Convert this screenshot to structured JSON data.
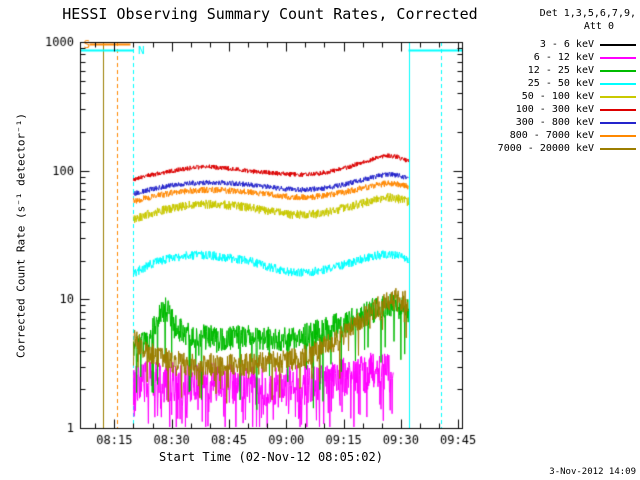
{
  "timestamp": "3-Nov-2012 14:09",
  "chart_data": {
    "type": "line",
    "title": "HESSI Observing Summary Count Rates, Corrected",
    "xlabel": "Start Time (02-Nov-12 08:05:02)",
    "ylabel": "Corrected Count Rate (s⁻¹ detector⁻¹)",
    "grid": false,
    "x_axis": {
      "unit": "minutes after 08:00",
      "min": 6,
      "max": 106,
      "minor_step": 5,
      "major_ticks": [
        {
          "t": 15,
          "label": "08:15"
        },
        {
          "t": 30,
          "label": "08:30"
        },
        {
          "t": 45,
          "label": "08:45"
        },
        {
          "t": 60,
          "label": "09:00"
        },
        {
          "t": 75,
          "label": "09:15"
        },
        {
          "t": 90,
          "label": "09:30"
        },
        {
          "t": 105,
          "label": "09:45"
        }
      ]
    },
    "y_axis": {
      "scale": "log",
      "min": 1,
      "max": 1000,
      "major_ticks": [
        {
          "v": 1,
          "label": "1"
        },
        {
          "v": 10,
          "label": "10"
        },
        {
          "v": 100,
          "label": "100"
        },
        {
          "v": 1000,
          "label": "1000"
        }
      ]
    },
    "legend": {
      "position": "top-right",
      "header_line1": "Det 1,3,5,6,7,9,",
      "header_line2": "Att 0",
      "entries": [
        {
          "label": "3 - 6 keV",
          "color": "#000000"
        },
        {
          "label": "6 - 12 keV",
          "color": "#ff00ff"
        },
        {
          "label": "12 - 25 keV",
          "color": "#00bb00"
        },
        {
          "label": "25 - 50 keV",
          "color": "#00ffff"
        },
        {
          "label": "50 - 100 keV",
          "color": "#c9c900"
        },
        {
          "label": "100 - 300 keV",
          "color": "#dd0000"
        },
        {
          "label": "300 - 800 keV",
          "color": "#2424cc"
        },
        {
          "label": "800 - 7000 keV",
          "color": "#ff8800"
        },
        {
          "label": "7000 - 20000 keV",
          "color": "#9c7e00"
        }
      ]
    },
    "flags": {
      "eclipse": {
        "color": "#9c7e00",
        "line_t": 12.0,
        "style": "solid"
      },
      "saa": {
        "label": "S",
        "color": "#ff8800",
        "bar_value": 960,
        "bar_range": [
          8.5,
          19.2
        ],
        "line_t": 15.8,
        "line_style": "dashed",
        "label_t": 6.9
      },
      "night": {
        "label": "N",
        "color": "#00ffff",
        "bar_value": 860,
        "bar_ranges": [
          [
            6,
            20
          ],
          [
            92,
            106
          ]
        ],
        "lines": [
          {
            "t": 20,
            "style": "dashed"
          },
          {
            "t": 92,
            "style": "solid"
          },
          {
            "t": 100.5,
            "style": "dashed"
          }
        ],
        "label_t": 21.2
      }
    },
    "series": [
      {
        "name": "3 - 6 keV",
        "color": "#000000",
        "noise": 0,
        "points": []
      },
      {
        "name": "6 - 12 keV",
        "color": "#ff00ff",
        "noise": 0.16,
        "spike_prob": 0.18,
        "spike_depth": 0.35,
        "points": [
          [
            20,
            2.3
          ],
          [
            28,
            2.25
          ],
          [
            36,
            2.3
          ],
          [
            44,
            2.2
          ],
          [
            52,
            2.15
          ],
          [
            60,
            2.1
          ],
          [
            68,
            2.25
          ],
          [
            76,
            2.5
          ],
          [
            82,
            2.75
          ],
          [
            86,
            2.8
          ],
          [
            88,
            2.5
          ]
        ]
      },
      {
        "name": "12 - 25 keV",
        "color": "#00bb00",
        "noise": 0.1,
        "spike_prob": 0.06,
        "spike_depth": 0.5,
        "points": [
          [
            20,
            4.2
          ],
          [
            24,
            4.8
          ],
          [
            26.5,
            7.5
          ],
          [
            28.5,
            8.5
          ],
          [
            31,
            6.0
          ],
          [
            35,
            5.2
          ],
          [
            40,
            5.0
          ],
          [
            45,
            5.0
          ],
          [
            50,
            5.0
          ],
          [
            55,
            5.0
          ],
          [
            60,
            5.0
          ],
          [
            65,
            5.2
          ],
          [
            70,
            5.8
          ],
          [
            75,
            6.5
          ],
          [
            80,
            7.5
          ],
          [
            84,
            8.5
          ],
          [
            88,
            9.0
          ],
          [
            91,
            8.5
          ],
          [
            92,
            8.0
          ]
        ]
      },
      {
        "name": "25 - 50 keV",
        "color": "#00ffff",
        "noise": 0.035,
        "points": [
          [
            20,
            16
          ],
          [
            25,
            19
          ],
          [
            30,
            21
          ],
          [
            35,
            22
          ],
          [
            40,
            22
          ],
          [
            45,
            21
          ],
          [
            50,
            20
          ],
          [
            55,
            18
          ],
          [
            60,
            16.5
          ],
          [
            65,
            16
          ],
          [
            70,
            17
          ],
          [
            75,
            18.5
          ],
          [
            80,
            20.5
          ],
          [
            84,
            22
          ],
          [
            87,
            22.5
          ],
          [
            90,
            21.5
          ],
          [
            92,
            20
          ]
        ]
      },
      {
        "name": "50 - 100 keV",
        "color": "#c9c900",
        "noise": 0.035,
        "points": [
          [
            20,
            42
          ],
          [
            25,
            47
          ],
          [
            30,
            51
          ],
          [
            35,
            54
          ],
          [
            40,
            55
          ],
          [
            45,
            54
          ],
          [
            50,
            52
          ],
          [
            55,
            49
          ],
          [
            60,
            46
          ],
          [
            65,
            45
          ],
          [
            70,
            47
          ],
          [
            75,
            51
          ],
          [
            80,
            56
          ],
          [
            84,
            60
          ],
          [
            87,
            62
          ],
          [
            90,
            60
          ],
          [
            92,
            57
          ]
        ]
      },
      {
        "name": "100 - 300 keV",
        "color": "#dd0000",
        "noise": 0.018,
        "points": [
          [
            20,
            85
          ],
          [
            24,
            92
          ],
          [
            28,
            97
          ],
          [
            32,
            102
          ],
          [
            36,
            106
          ],
          [
            40,
            107
          ],
          [
            44,
            105
          ],
          [
            48,
            101
          ],
          [
            52,
            98
          ],
          [
            56,
            96
          ],
          [
            60,
            94
          ],
          [
            64,
            93
          ],
          [
            68,
            95
          ],
          [
            72,
            99
          ],
          [
            76,
            106
          ],
          [
            80,
            116
          ],
          [
            84,
            126
          ],
          [
            87,
            131
          ],
          [
            89,
            128
          ],
          [
            91,
            122
          ],
          [
            92,
            118
          ]
        ]
      },
      {
        "name": "300 - 800 keV",
        "color": "#2424cc",
        "noise": 0.02,
        "points": [
          [
            20,
            66
          ],
          [
            25,
            72
          ],
          [
            30,
            77
          ],
          [
            35,
            80
          ],
          [
            40,
            81
          ],
          [
            45,
            80
          ],
          [
            50,
            78
          ],
          [
            55,
            75
          ],
          [
            60,
            72
          ],
          [
            65,
            71
          ],
          [
            70,
            73
          ],
          [
            75,
            78
          ],
          [
            80,
            85
          ],
          [
            84,
            91
          ],
          [
            87,
            94
          ],
          [
            90,
            91
          ],
          [
            92,
            87
          ]
        ]
      },
      {
        "name": "800 - 7000 keV",
        "color": "#ff8800",
        "noise": 0.025,
        "points": [
          [
            20,
            58
          ],
          [
            25,
            63
          ],
          [
            30,
            67
          ],
          [
            35,
            70
          ],
          [
            40,
            71
          ],
          [
            45,
            70
          ],
          [
            50,
            68
          ],
          [
            55,
            66
          ],
          [
            60,
            63
          ],
          [
            65,
            62
          ],
          [
            70,
            64
          ],
          [
            75,
            68
          ],
          [
            80,
            73
          ],
          [
            84,
            78
          ],
          [
            87,
            80
          ],
          [
            90,
            78
          ],
          [
            92,
            75
          ]
        ]
      },
      {
        "name": "7000 - 20000 keV",
        "color": "#9c7e00",
        "noise": 0.09,
        "spike_prob": 0.05,
        "spike_depth": 0.3,
        "points": [
          [
            20,
            5.0
          ],
          [
            23,
            4.2
          ],
          [
            26,
            3.6
          ],
          [
            30,
            3.3
          ],
          [
            35,
            3.1
          ],
          [
            40,
            3.1
          ],
          [
            45,
            3.1
          ],
          [
            50,
            3.1
          ],
          [
            55,
            3.2
          ],
          [
            60,
            3.3
          ],
          [
            65,
            3.6
          ],
          [
            70,
            4.2
          ],
          [
            74,
            5.0
          ],
          [
            78,
            6.2
          ],
          [
            82,
            7.8
          ],
          [
            85,
            9.0
          ],
          [
            88,
            10.0
          ],
          [
            90,
            10.0
          ],
          [
            92,
            9.3
          ]
        ]
      }
    ]
  }
}
